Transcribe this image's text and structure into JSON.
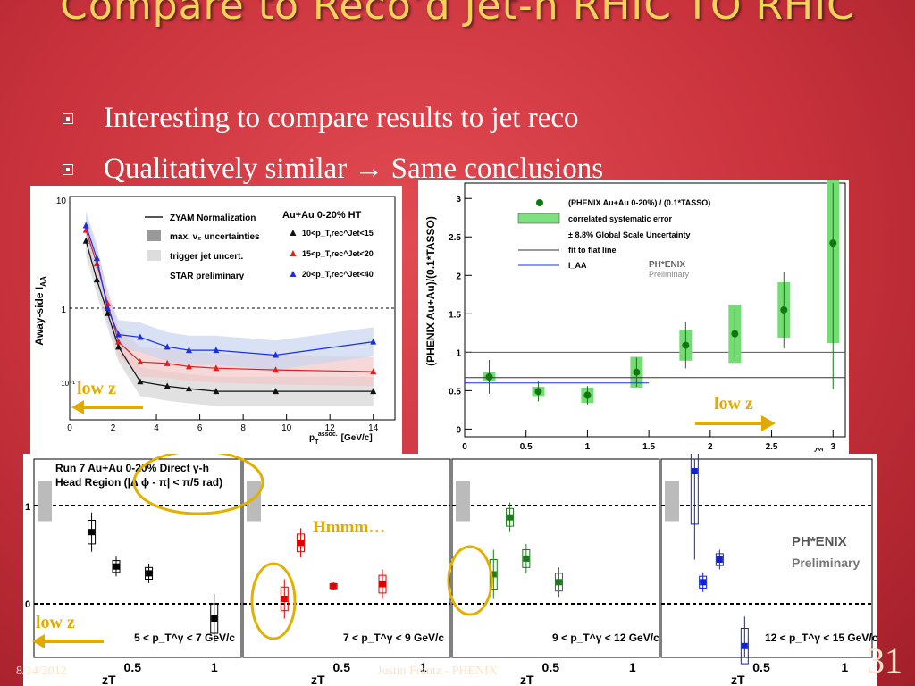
{
  "slide": {
    "title": "Compare to Reco’d Jet-h RHIC TO RHIC",
    "bullets": [
      {
        "text": "Interesting to compare results to jet reco"
      },
      {
        "text": "Qualitatively similar → Same conclusions"
      }
    ],
    "footer_date": "8/14/2012",
    "footer_author": "Justin Frantz - PHENIX",
    "page_number": "31",
    "annotations": {
      "low_z": "low  z",
      "hmmm": "Hmmm…"
    }
  },
  "star_plot": {
    "ylabel": "Away-side I",
    "ylabel_sub": "AA",
    "xlabel": "p",
    "xlabel_sup": "assoc.",
    "xlabel_sub": "T",
    "xlabel_unit": "[GeV/c]",
    "x_ticks": [
      "0",
      "2",
      "4",
      "6",
      "8",
      "10",
      "12",
      "14"
    ],
    "y_ticks": [
      "10⁻¹",
      "1",
      "10"
    ],
    "legend": [
      "ZYAM Normalization",
      "max. v₂ uncertainties",
      "trigger jet uncert.",
      "STAR preliminary"
    ],
    "system": "Au+Au 0-20% HT",
    "series_labels": [
      "10<p_T,rec^Jet<15",
      "15<p_T,rec^Jet<20",
      "20<p_T,rec^Jet<40"
    ],
    "colors": {
      "s1": "#111111",
      "s2": "#e02020",
      "s3": "#1a2fe0"
    }
  },
  "phenix_ratio": {
    "ylabel": "(PHENIX Au+Au)/(0.1*TASSO)",
    "x_ticks": [
      "0",
      "0.5",
      "1",
      "1.5",
      "2",
      "2.5",
      "3"
    ],
    "y_ticks": [
      "0",
      "0.5",
      "1",
      "1.5",
      "2",
      "2.5",
      "3"
    ],
    "legend": [
      "(PHENIX Au+Au 0-20%) / (0.1*TASSO)",
      "correlated systematic error",
      "± 8.8% Global Scale Uncertainty",
      "fit to flat line",
      "I_AA"
    ],
    "logo": "PH*ENIX",
    "logo_sub": "Preliminary",
    "xlabel_fragment": "ξ"
  },
  "phenix_bottom": {
    "title_line1": "Run 7 Au+Au 0-20% Direct γ-h",
    "title_line2": "Head Region (|Δ ϕ - π| < π/5 rad)",
    "xlabel": "z",
    "xlabel_sub": "T",
    "y_ticks": [
      "0",
      "1"
    ],
    "x_ticks": [
      "0.5",
      "1"
    ],
    "pt_ranges": [
      "5 < p_T^γ < 7 GeV/c",
      "7 < p_T^γ < 9 GeV/c",
      "9 < p_T^γ < 12 GeV/c",
      "12 < p_T^γ < 15 GeV/c"
    ],
    "logo": "PH*ENIX",
    "logo_sub": "Preliminary",
    "colors": {
      "p1": "#000000",
      "p2": "#e00000",
      "p3": "#1d7a1d",
      "p4": "#1020d8"
    }
  },
  "chart_data": [
    {
      "type": "line",
      "title": "",
      "xlabel": "p_T^assoc. [GeV/c]",
      "ylabel": "Away-side I_AA",
      "log_y": true,
      "xlim": [
        0,
        15
      ],
      "ylim": [
        0.1,
        10
      ],
      "series": [
        {
          "name": "10<p_T,rec^Jet<15",
          "x": [
            0.75,
            1.25,
            1.75,
            2.25,
            3.25,
            4.5,
            5.5,
            6.75,
            9.5,
            14.0
          ],
          "y": [
            4.0,
            1.8,
            0.9,
            0.45,
            0.22,
            0.2,
            0.19,
            0.18,
            0.18,
            0.18
          ]
        },
        {
          "name": "15<p_T,rec^Jet<20",
          "x": [
            0.75,
            1.25,
            1.75,
            2.25,
            3.25,
            4.5,
            5.5,
            6.75,
            9.5,
            14.0
          ],
          "y": [
            5.0,
            2.5,
            1.1,
            0.5,
            0.33,
            0.32,
            0.3,
            0.29,
            0.28,
            0.27
          ]
        },
        {
          "name": "20<p_T,rec^Jet<40",
          "x": [
            0.75,
            1.25,
            1.75,
            2.25,
            3.25,
            4.5,
            5.5,
            6.75,
            9.5,
            14.0
          ],
          "y": [
            5.5,
            2.8,
            1.0,
            0.58,
            0.55,
            0.45,
            0.42,
            0.42,
            0.38,
            0.5
          ]
        }
      ]
    },
    {
      "type": "scatter",
      "title": "",
      "xlabel": "",
      "ylabel": "(PHENIX Au+Au)/(0.1*TASSO)",
      "xlim": [
        0,
        3.1
      ],
      "ylim": [
        -0.1,
        3.2
      ],
      "series": [
        {
          "name": "(PHENIX Au+Au 0-20%) / (0.1*TASSO)",
          "x": [
            0.2,
            0.6,
            1.0,
            1.4,
            1.8,
            2.2,
            2.6,
            3.0
          ],
          "y": [
            0.68,
            0.49,
            0.44,
            0.74,
            1.09,
            1.24,
            1.55,
            2.42
          ],
          "err": [
            0.22,
            0.13,
            0.12,
            0.19,
            0.3,
            0.32,
            0.5,
            1.9
          ],
          "sys": [
            0.06,
            0.06,
            0.1,
            0.2,
            0.2,
            0.38,
            0.36,
            1.3
          ]
        },
        {
          "name": "fit to flat line",
          "y_const": 0.67
        },
        {
          "name": "I_AA",
          "x": [
            0,
            1.5
          ],
          "y_const": 0.6
        }
      ]
    },
    {
      "type": "scatter",
      "title": "Run 7 Au+Au 0-20% Direct γ-h Head Region (|Δ ϕ - π| < π/5 rad)",
      "xlabel": "z_T",
      "panels": [
        {
          "name": "5 < p_T^γ < 7 GeV/c",
          "x": [
            0.25,
            0.4,
            0.6,
            1.0
          ],
          "y": [
            0.73,
            0.38,
            0.31,
            -0.15
          ],
          "err": [
            0.2,
            0.1,
            0.1,
            0.25
          ]
        },
        {
          "name": "7 < p_T^γ < 9 GeV/c",
          "x": [
            0.15,
            0.25,
            0.45,
            0.75
          ],
          "y": [
            0.05,
            0.62,
            0.18,
            0.2
          ],
          "err": [
            0.2,
            0.15,
            0.04,
            0.15
          ]
        },
        {
          "name": "9 < p_T^γ < 12 GeV/c",
          "x": [
            0.15,
            0.25,
            0.35,
            0.55
          ],
          "y": [
            0.3,
            0.88,
            0.46,
            0.22
          ],
          "err": [
            0.25,
            0.15,
            0.15,
            0.15
          ]
        },
        {
          "name": "12 < p_T^γ < 15 GeV/c",
          "x": [
            0.1,
            0.15,
            0.25,
            0.4
          ],
          "y": [
            1.35,
            0.22,
            0.45,
            -0.43
          ],
          "err": [
            0.9,
            0.1,
            0.1,
            0.3
          ]
        }
      ]
    }
  ]
}
